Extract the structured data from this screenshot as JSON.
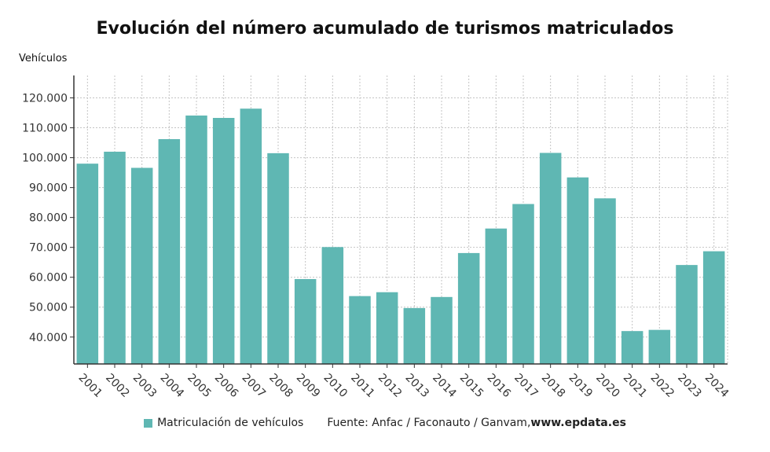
{
  "chart_data": {
    "type": "bar",
    "title": "Evolución del número acumulado de turismos matriculados",
    "ylabel": "Vehículos",
    "xlabel": "",
    "categories": [
      "2001",
      "2002",
      "2003",
      "2004",
      "2005",
      "2006",
      "2007",
      "2008",
      "2009",
      "2010",
      "2011",
      "2012",
      "2013",
      "2014",
      "2015",
      "2016",
      "2017",
      "2018",
      "2019",
      "2020",
      "2021",
      "2022",
      "2023",
      "2024"
    ],
    "series": [
      {
        "name": "Matriculación de vehículos",
        "values": [
          98000,
          102000,
          96600,
          106200,
          114100,
          113300,
          116400,
          101500,
          59400,
          70100,
          53700,
          55000,
          49700,
          53400,
          68100,
          76300,
          84500,
          101600,
          93400,
          86400,
          42000,
          42400,
          64100,
          68700
        ]
      }
    ],
    "ylim": [
      31000,
      127500
    ],
    "yticks": [
      40000,
      50000,
      60000,
      70000,
      80000,
      90000,
      100000,
      110000,
      120000
    ],
    "ytick_labels": [
      "40.000",
      "50.000",
      "60.000",
      "70.000",
      "80.000",
      "90.000",
      "100.000",
      "110.000",
      "120.000"
    ],
    "grid": true,
    "legend_position": "bottom",
    "bar_color": "#5fb7b3"
  },
  "legend": {
    "series_label": "Matriculación de vehículos",
    "source_text": "Fuente: Anfac / Faconauto / Ganvam, ",
    "source_url": "www.epdata.es"
  }
}
